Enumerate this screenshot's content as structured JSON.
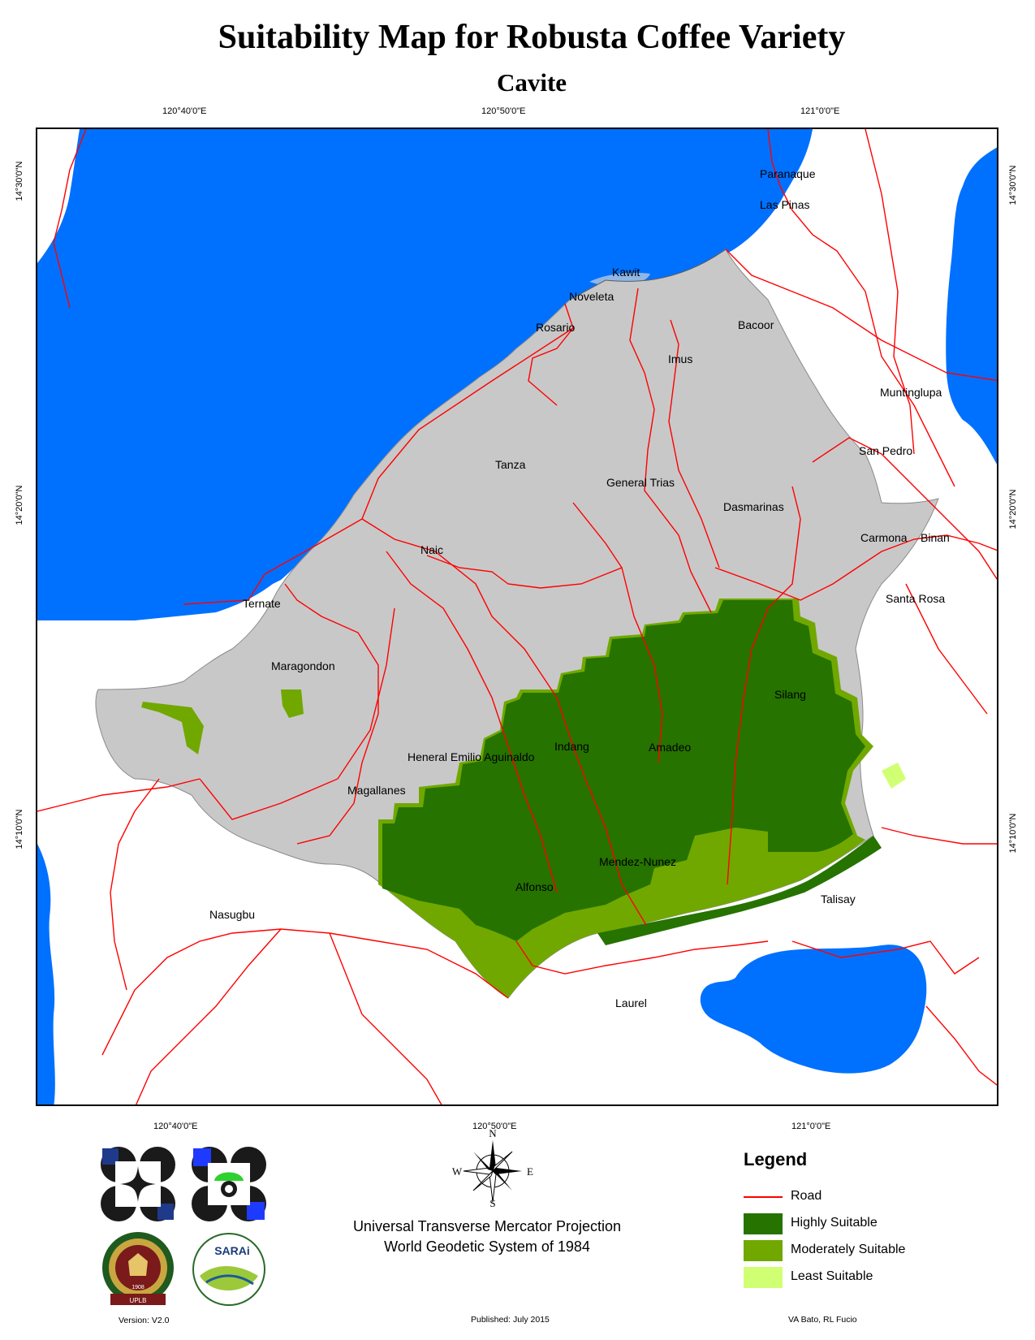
{
  "title": "Suitability Map for Robusta Coffee Variety",
  "subtitle": "Cavite",
  "graticule": {
    "top": [
      "120°40'0\"E",
      "120°50'0\"E",
      "121°0'0\"E"
    ],
    "bottom": [
      "120°40'0\"E",
      "120°50'0\"E",
      "121°0'0\"E"
    ],
    "left": [
      "14°30'0\"N",
      "14°20'0\"N",
      "14°10'0\"N"
    ],
    "right": [
      "14°30'0\"N",
      "14°20'0\"N",
      "14°10'0\"N"
    ]
  },
  "places": {
    "paranaque": "Paranaque",
    "las_pinas": "Las Pinas",
    "kawit": "Kawit",
    "noveleta": "Noveleta",
    "rosario": "Rosario",
    "bacoor": "Bacoor",
    "imus": "Imus",
    "muntinglupa": "Muntinglupa",
    "san_pedro": "San Pedro",
    "tanza": "Tanza",
    "general_trias": "General Trias",
    "dasmarinas": "Dasmarinas",
    "carmona": "Carmona",
    "binan": "Binan",
    "naic": "Naic",
    "santa_rosa": "Santa Rosa",
    "ternate": "Ternate",
    "maragondon": "Maragondon",
    "silang": "Silang",
    "indang": "Indang",
    "amadeo": "Amadeo",
    "gen_aguinaldo": "Heneral Emilio Aguinaldo",
    "magallanes": "Magallanes",
    "mendez_nunez": "Mendez-Nunez",
    "alfonso": "Alfonso",
    "nasugbu": "Nasugbu",
    "talisay": "Talisay",
    "laurel": "Laurel"
  },
  "compass": {
    "n": "N",
    "s": "S",
    "e": "E",
    "w": "W"
  },
  "projection": {
    "line1": "Universal Transverse Mercator Projection",
    "line2": "World Geodetic System of 1984"
  },
  "legend": {
    "title": "Legend",
    "items": [
      {
        "label": "Road",
        "color": "#ff0000",
        "kind": "line"
      },
      {
        "label": "Highly Suitable",
        "color": "#267300",
        "kind": "fill"
      },
      {
        "label": "Moderately Suitable",
        "color": "#70a800",
        "kind": "fill"
      },
      {
        "label": "Least Suitable",
        "color": "#d1ff73",
        "kind": "fill"
      }
    ]
  },
  "footer": {
    "version": "Version: V2.0",
    "published": "Published: July 2015",
    "authors": "VA Bato, RL Fucio"
  },
  "logos": {
    "logo1": "DA logo",
    "logo2": "BAR logo",
    "seal_text": "UPLB",
    "seal_year": "1908",
    "sarai": "SARAi"
  },
  "colors": {
    "water": "#0070ff",
    "land_cavite": "#c8c8c8",
    "highly": "#267300",
    "moderately": "#70a800",
    "least": "#d1ff73",
    "road": "#ff0000"
  }
}
